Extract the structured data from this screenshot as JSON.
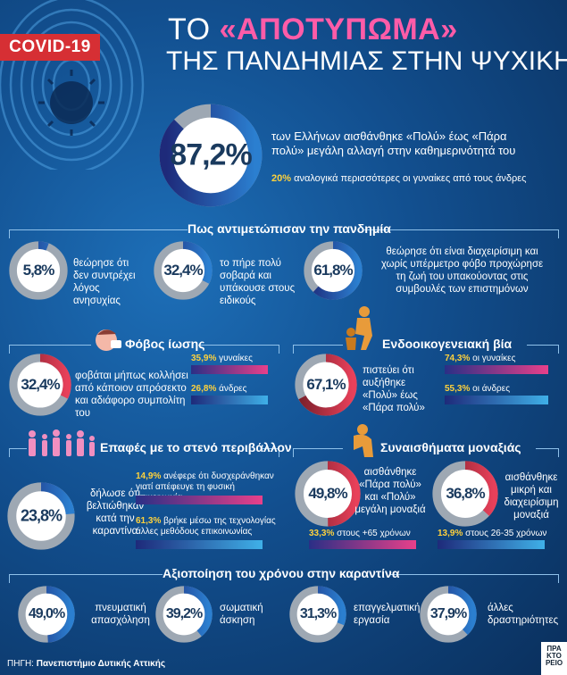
{
  "badge": "COVID-19",
  "title": {
    "prefix": "ΤΟ",
    "highlight": "«ΑΠΟΤΥΠΩΜΑ»",
    "line2": "ΤΗΣ ΠΑΝΔΗΜΙΑΣ ΣΤΗΝ ΨΥΧΙΚΗ ΥΓΕΙΑ"
  },
  "colors": {
    "pink": "#e8408a",
    "navy": "#1e2a7a",
    "ring_grey": "#9ea8b3",
    "yellow": "#ffd23c",
    "red": "#d62f34"
  },
  "headline": {
    "pct": "87,2%",
    "text": "των Ελλήνων αισθάνθηκε «Πολύ» έως «Πάρα πολύ» μεγάλη αλλαγή στην καθημερινότητά του",
    "sub_value": "20%",
    "sub_text": "αναλογικά περισσότερες οι γυναίκες από τους άνδρες"
  },
  "sections": {
    "coping": "Πως αντιμετώπισαν την πανδημία",
    "fear": "Φόβος ίωσης",
    "violence": "Ενδοοικογενειακή βία",
    "contacts": "Επαφές με το στενό περιβάλλον",
    "loneliness": "Συναισθήματα μοναξιάς",
    "time": "Αξιοποίηση του χρόνου στην καραντίνα"
  },
  "coping": [
    {
      "pct": "5,8%",
      "text": "θεώρησε ότι δεν συντρέχει λόγος ανησυχίας"
    },
    {
      "pct": "32,4%",
      "text": "το πήρε πολύ σοβαρά και υπάκουσε στους ειδικούς"
    },
    {
      "pct": "61,8%",
      "text": "θεώρησε ότι είναι διαχειρίσιμη και χωρίς υπέρμετρο φόβο προχώρησε τη ζωή του υπακούοντας στις συμβουλές των επιστημόνων"
    }
  ],
  "fear": {
    "pct": "32,4%",
    "text": "φοβάται μήπως κολλήσει από κάποιον απρόσεκτο και αδιάφορο συμπολίτη του",
    "women_value": "35,9%",
    "women_label": "γυναίκες",
    "men_value": "26,8%",
    "men_label": "άνδρες"
  },
  "violence": {
    "pct": "67,1%",
    "text": "πιστεύει ότι αυξήθηκε «Πολύ» έως «Πάρα πολύ»",
    "women_value": "74,3%",
    "women_label": "οι γυναίκες",
    "men_value": "55,3%",
    "men_label": "οι άνδρες"
  },
  "contacts": {
    "pct": "23,8%",
    "text": "δήλωσε ότι βελτιώθηκαν κατά την καραντίνα",
    "stat1_value": "14,9%",
    "stat1_text": "ανέφερε ότι δυσχεράνθηκαν γιατί απέφευγε τη φυσική επικοινωνία",
    "stat2_value": "61,3%",
    "stat2_text": "βρήκε μέσω της τεχνολογίας άλλες μεθόδους επικοινωνίας"
  },
  "loneliness": [
    {
      "pct": "49,8%",
      "text": "αισθάνθηκε «Πάρα πολύ» και «Πολύ» μεγάλη μοναξιά",
      "note_value": "33,3%",
      "note_text": "στους +65 χρόνων"
    },
    {
      "pct": "36,8%",
      "text": "αισθάνθηκε μικρή και διαχειρίσιμη μοναξιά",
      "note_value": "13,9%",
      "note_text": "στους 26-35 χρόνων"
    }
  ],
  "time": [
    {
      "pct": "49,0%",
      "text": "πνευματική απασχόληση"
    },
    {
      "pct": "39,2%",
      "text": "σωματική άσκηση"
    },
    {
      "pct": "31,3%",
      "text": "επαγγελματική εργασία"
    },
    {
      "pct": "37,9%",
      "text": "άλλες δραστηριότητες"
    }
  ],
  "source": {
    "label": "ΠΗΓΗ:",
    "value": "Πανεπιστήμιο Δυτικής Αττικής"
  },
  "logo": "ΠΡΑ ΚΤΟ ΡΕΙΟ",
  "chart_data": {
    "type": "pie",
    "headline": {
      "value": 87.2,
      "unit": "%"
    },
    "coping": {
      "categories": [
        "θεώρησε ότι δεν συντρέχει λόγος ανησυχίας",
        "το πήρε πολύ σοβαρά και υπάκουσε στους ειδικούς",
        "θεώρησε ότι είναι διαχειρίσιμη"
      ],
      "values": [
        5.8,
        32.4,
        61.8
      ]
    },
    "fear": {
      "value": 32.4,
      "women": 35.9,
      "men": 26.8
    },
    "violence": {
      "value": 67.1,
      "women": 74.3,
      "men": 55.3
    },
    "contacts": {
      "value": 23.8,
      "stat1": 14.9,
      "stat2": 61.3
    },
    "loneliness": {
      "values": [
        49.8,
        36.8
      ],
      "notes": [
        33.3,
        13.9
      ]
    },
    "time": {
      "categories": [
        "πνευματική απασχόληση",
        "σωματική άσκηση",
        "επαγγελματική εργασία",
        "άλλες δραστηριότητες"
      ],
      "values": [
        49.0,
        39.2,
        31.3,
        37.9
      ]
    }
  }
}
